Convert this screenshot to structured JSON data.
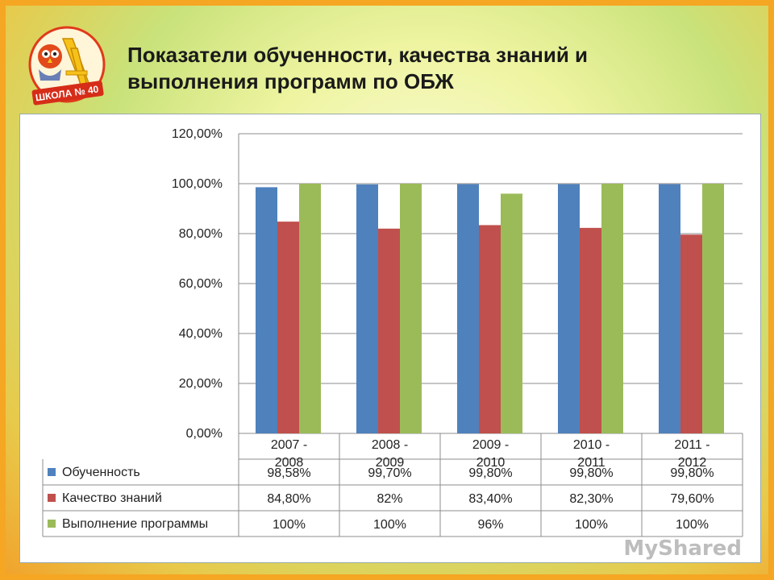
{
  "slide": {
    "title_line1": "Показатели обученности, качества знаний и",
    "title_line2": "выполнения программ по ОБЖ",
    "logo_text": "ШКОЛА № 40",
    "watermark": "MyShared"
  },
  "chart_data": {
    "type": "bar",
    "categories": [
      [
        "2007 -",
        "2008"
      ],
      [
        "2008 -",
        "2009"
      ],
      [
        "2009 -",
        "2010"
      ],
      [
        "2010 -",
        "2011"
      ],
      [
        "2011 -",
        "2012"
      ]
    ],
    "yticks": [
      "0,00%",
      "20,00%",
      "40,00%",
      "60,00%",
      "80,00%",
      "100,00%",
      "120,00%"
    ],
    "ylim": [
      0,
      1.2
    ],
    "grid": true,
    "legend": "data-table",
    "series": [
      {
        "name": "Обученность",
        "color": "#4f81bd",
        "values": [
          0.9858,
          0.997,
          0.998,
          0.998,
          0.998
        ],
        "labels": [
          "98,58%",
          "99,70%",
          "99,80%",
          "99,80%",
          "99,80%"
        ]
      },
      {
        "name": "Качество знаний",
        "color": "#c0504d",
        "values": [
          0.848,
          0.82,
          0.834,
          0.823,
          0.796
        ],
        "labels": [
          "84,80%",
          "82%",
          "83,40%",
          "82,30%",
          "79,60%"
        ]
      },
      {
        "name": "Выполнение программы",
        "color": "#9bbb59",
        "values": [
          1.0,
          1.0,
          0.96,
          1.0,
          1.0
        ],
        "labels": [
          "100%",
          "100%",
          "96%",
          "100%",
          "100%"
        ]
      }
    ]
  }
}
